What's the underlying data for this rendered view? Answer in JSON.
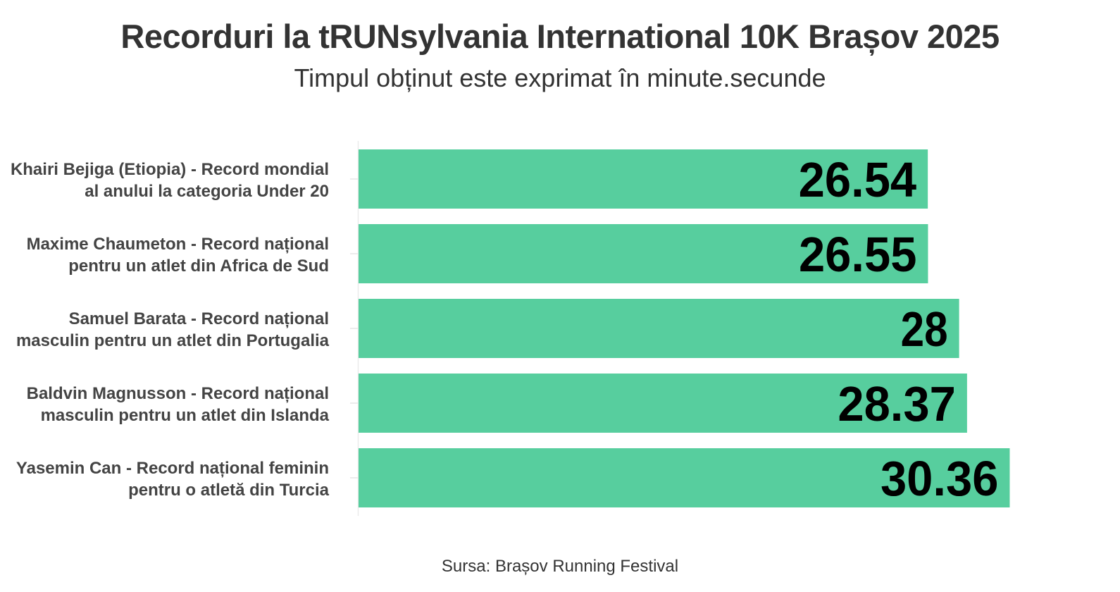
{
  "chart_data": {
    "type": "bar",
    "orientation": "horizontal",
    "title": "Recorduri la tRUNsylvania International 10K Brașov 2025",
    "subtitle": "Timpul obținut este exprimat în minute.secunde",
    "categories": [
      [
        "Khairi Bejiga (Etiopia) - Record mondial",
        "al anului la categoria Under 20"
      ],
      [
        "Maxime Chaumeton - Record național",
        "pentru un atlet din Africa de Sud"
      ],
      [
        "Samuel Barata - Record național",
        "masculin pentru un atlet din Portugalia"
      ],
      [
        "Baldvin Magnusson - Record național",
        "masculin pentru un atlet din Islanda"
      ],
      [
        "Yasemin Can - Record național feminin",
        "pentru o atletă din Turcia"
      ]
    ],
    "values": [
      26.54,
      26.55,
      28,
      28.37,
      30.36
    ],
    "value_labels": [
      "26.54",
      "26.55",
      "28",
      "28.37",
      "30.36"
    ],
    "xlim": [
      0,
      31.8
    ],
    "bar_color": "#57ce9e",
    "grid": false,
    "caption": "Sursa: Brașov Running Festival"
  }
}
